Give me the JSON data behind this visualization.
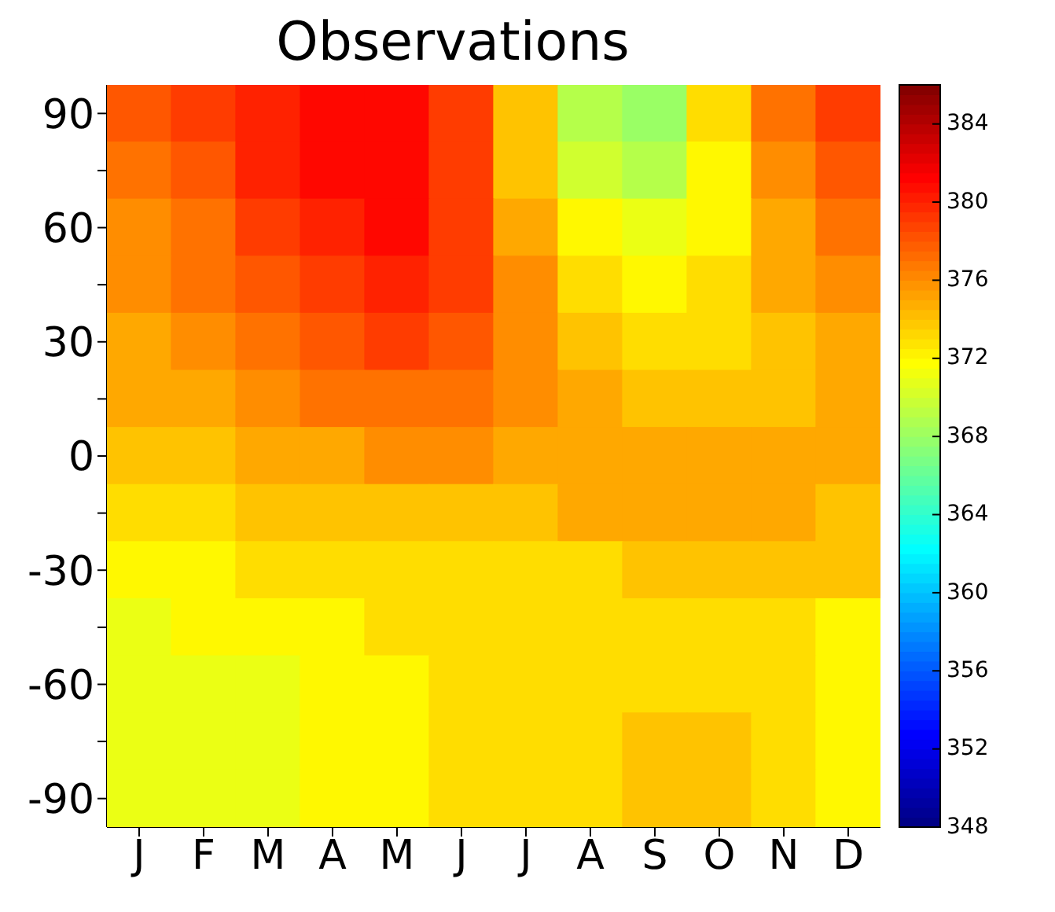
{
  "chart_data": {
    "type": "heatmap",
    "title": "Observations",
    "categories": [
      "J",
      "F",
      "M",
      "A",
      "M",
      "J",
      "J",
      "A",
      "S",
      "O",
      "N",
      "D"
    ],
    "y_categories": [
      "90",
      null,
      "60",
      null,
      "30",
      null,
      "0",
      null,
      "-30",
      null,
      "-60",
      null,
      "-90"
    ],
    "cells": [
      [
        378,
        379,
        380,
        381,
        381,
        379,
        374,
        369,
        368,
        373,
        377,
        379
      ],
      [
        377,
        378,
        380,
        381,
        381,
        379,
        374,
        370,
        369,
        372,
        376,
        378
      ],
      [
        376,
        377,
        379,
        380,
        381,
        379,
        375,
        372,
        371,
        372,
        375,
        377
      ],
      [
        376,
        377,
        378,
        379,
        380,
        379,
        376,
        373,
        372,
        373,
        375,
        376
      ],
      [
        375,
        376,
        377,
        378,
        379,
        378,
        376,
        374,
        373,
        373,
        374,
        375
      ],
      [
        375,
        375,
        376,
        377,
        377,
        377,
        376,
        375,
        374,
        374,
        374,
        375
      ],
      [
        374,
        374,
        375,
        375,
        376,
        376,
        375,
        375,
        375,
        375,
        375,
        375
      ],
      [
        373,
        373,
        374,
        374,
        374,
        374,
        374,
        375,
        375,
        375,
        375,
        374
      ],
      [
        372,
        372,
        373,
        373,
        373,
        373,
        373,
        373,
        374,
        374,
        374,
        374
      ],
      [
        371,
        372,
        372,
        372,
        373,
        373,
        373,
        373,
        373,
        373,
        373,
        372
      ],
      [
        371,
        371,
        371,
        372,
        372,
        373,
        373,
        373,
        373,
        373,
        373,
        372
      ],
      [
        371,
        371,
        371,
        372,
        372,
        373,
        373,
        373,
        374,
        374,
        373,
        372
      ],
      [
        371,
        371,
        371,
        372,
        372,
        373,
        373,
        373,
        374,
        374,
        373,
        372
      ]
    ],
    "clim": [
      348,
      386
    ],
    "cticks": [
      348,
      352,
      356,
      360,
      364,
      368,
      372,
      376,
      380,
      384
    ]
  }
}
